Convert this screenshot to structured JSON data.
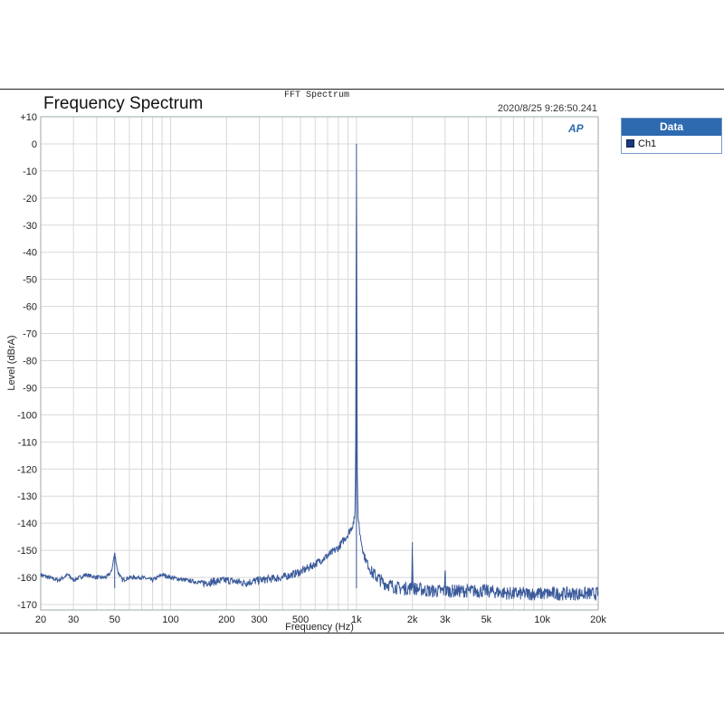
{
  "chart_data": {
    "type": "line",
    "super_title": "FFT Spectrum",
    "title": "Frequency Spectrum",
    "timestamp": "2020/8/25 9:26:50.241",
    "xlabel": "Frequency (Hz)",
    "ylabel": "Level (dBrA)",
    "x_scale": "log",
    "xlim": [
      20,
      20000
    ],
    "ylim": [
      -172,
      10
    ],
    "grid": true,
    "x_ticks": [
      {
        "v": 20,
        "label": "20"
      },
      {
        "v": 30,
        "label": "30"
      },
      {
        "v": 50,
        "label": "50"
      },
      {
        "v": 100,
        "label": "100"
      },
      {
        "v": 200,
        "label": "200"
      },
      {
        "v": 300,
        "label": "300"
      },
      {
        "v": 500,
        "label": "500"
      },
      {
        "v": 1000,
        "label": "1k"
      },
      {
        "v": 2000,
        "label": "2k"
      },
      {
        "v": 3000,
        "label": "3k"
      },
      {
        "v": 5000,
        "label": "5k"
      },
      {
        "v": 10000,
        "label": "10k"
      },
      {
        "v": 20000,
        "label": "20k"
      }
    ],
    "y_ticks": [
      {
        "v": 10,
        "label": "+10"
      },
      {
        "v": 0,
        "label": "0"
      },
      {
        "v": -10,
        "label": "-10"
      },
      {
        "v": -20,
        "label": "-20"
      },
      {
        "v": -30,
        "label": "-30"
      },
      {
        "v": -40,
        "label": "-40"
      },
      {
        "v": -50,
        "label": "-50"
      },
      {
        "v": -60,
        "label": "-60"
      },
      {
        "v": -70,
        "label": "-70"
      },
      {
        "v": -80,
        "label": "-80"
      },
      {
        "v": -90,
        "label": "-90"
      },
      {
        "v": -100,
        "label": "-100"
      },
      {
        "v": -110,
        "label": "-110"
      },
      {
        "v": -120,
        "label": "-120"
      },
      {
        "v": -130,
        "label": "-130"
      },
      {
        "v": -140,
        "label": "-140"
      },
      {
        "v": -150,
        "label": "-150"
      },
      {
        "v": -160,
        "label": "-160"
      },
      {
        "v": -170,
        "label": "-170"
      }
    ],
    "legend": {
      "title": "Data",
      "placement": "right"
    },
    "series": [
      {
        "name": "Ch1",
        "color": "#3a5a9a",
        "x": [
          20,
          22,
          25,
          28,
          30,
          35,
          40,
          45,
          48,
          50,
          52,
          55,
          60,
          70,
          80,
          90,
          100,
          120,
          150,
          200,
          250,
          300,
          400,
          500,
          600,
          700,
          800,
          900,
          950,
          980,
          990,
          1000,
          1010,
          1020,
          1050,
          1100,
          1200,
          1400,
          1700,
          1980,
          2000,
          2020,
          2500,
          2980,
          3000,
          3020,
          4000,
          5000,
          7000,
          10000,
          15000,
          20000
        ],
        "y": [
          -159,
          -160,
          -161,
          -159,
          -161,
          -159,
          -160,
          -160,
          -158,
          -151,
          -158,
          -161,
          -160,
          -160,
          -161,
          -159,
          -160,
          -161,
          -162,
          -161,
          -162,
          -161,
          -160,
          -158,
          -155,
          -152,
          -149,
          -144,
          -141,
          -138,
          -120,
          0,
          -120,
          -138,
          -145,
          -152,
          -158,
          -162,
          -164,
          -164,
          -147,
          -164,
          -165,
          -165,
          -152,
          -165,
          -165,
          -165,
          -166,
          -166,
          -166,
          -166
        ]
      }
    ]
  }
}
